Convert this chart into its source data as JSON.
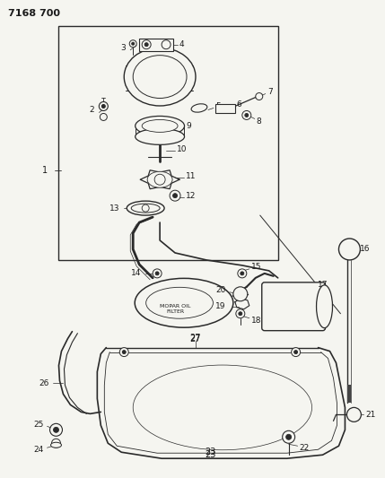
{
  "title": "7168 700",
  "bg_color": "#f5f5f0",
  "line_color": "#2a2a2a",
  "text_color": "#1a1a1a",
  "title_fontsize": 8,
  "label_fontsize": 6.5,
  "fig_width": 4.29,
  "fig_height": 5.33,
  "dpi": 100
}
